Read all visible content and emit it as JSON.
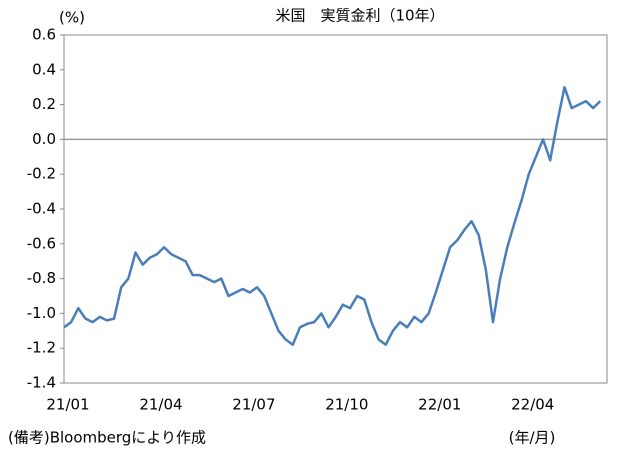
{
  "chart_data": {
    "type": "line",
    "title": "米国　実質金利（10年）",
    "y_unit": "(%)",
    "x_unit": "(年/月)",
    "note": "(備考)Bloombergにより作成",
    "categories": [
      "21/01",
      null,
      null,
      null,
      null,
      null,
      null,
      null,
      null,
      null,
      null,
      null,
      null,
      "21/04",
      null,
      null,
      null,
      null,
      null,
      null,
      null,
      null,
      null,
      null,
      null,
      null,
      "21/07",
      null,
      null,
      null,
      null,
      null,
      null,
      null,
      null,
      null,
      null,
      null,
      null,
      "21/10",
      null,
      null,
      null,
      null,
      null,
      null,
      null,
      null,
      null,
      null,
      null,
      null,
      "22/01",
      null,
      null,
      null,
      null,
      null,
      null,
      null,
      null,
      null,
      null,
      null,
      null,
      "22/04",
      null,
      null,
      null,
      null,
      null,
      null,
      null,
      null,
      null,
      null
    ],
    "series": [
      {
        "name": "実質金利",
        "color": "#4a7ebb",
        "values": [
          -1.08,
          -1.05,
          -0.97,
          -1.03,
          -1.05,
          -1.02,
          -1.04,
          -1.03,
          -0.85,
          -0.8,
          -0.65,
          -0.72,
          -0.68,
          -0.66,
          -0.62,
          -0.66,
          -0.68,
          -0.7,
          -0.78,
          -0.78,
          -0.8,
          -0.82,
          -0.8,
          -0.9,
          -0.88,
          -0.86,
          -0.88,
          -0.85,
          -0.9,
          -1.0,
          -1.1,
          -1.15,
          -1.18,
          -1.08,
          -1.06,
          -1.05,
          -1.0,
          -1.08,
          -1.02,
          -0.95,
          -0.97,
          -0.9,
          -0.92,
          -1.05,
          -1.15,
          -1.18,
          -1.1,
          -1.05,
          -1.08,
          -1.02,
          -1.05,
          -1.0,
          -0.88,
          -0.75,
          -0.62,
          -0.58,
          -0.52,
          -0.47,
          -0.55,
          -0.75,
          -1.05,
          -0.8,
          -0.62,
          -0.48,
          -0.35,
          -0.2,
          -0.1,
          0.0,
          -0.12,
          0.1,
          0.3,
          0.18,
          0.2,
          0.22,
          0.18,
          0.22
        ]
      }
    ],
    "ylim": [
      -1.4,
      0.6
    ],
    "yticks": [
      -1.4,
      -1.2,
      {
        "value": -1.0,
        "label": "-1.0"
      },
      -0.8,
      -0.6,
      -0.4,
      -0.2,
      {
        "value": 0,
        "label": "0.0"
      },
      0.2,
      0.4,
      0.6
    ],
    "zero_line": true
  }
}
